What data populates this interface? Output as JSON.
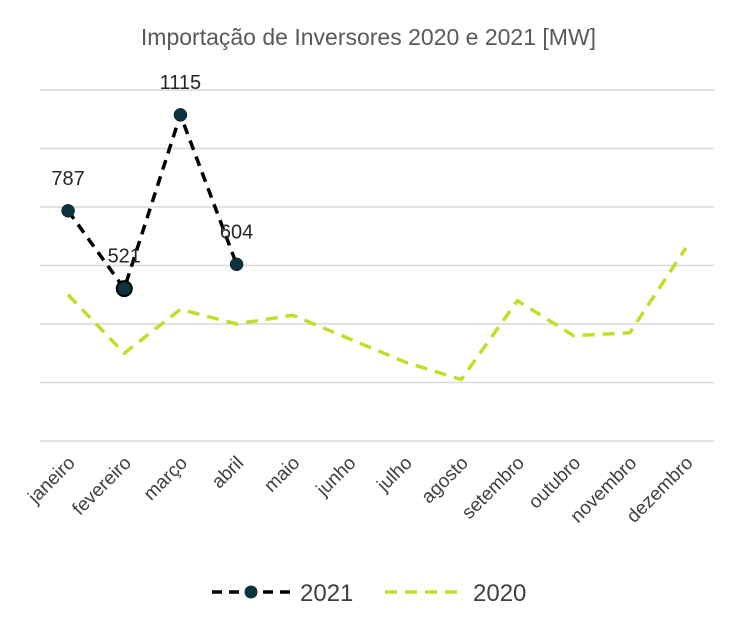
{
  "chart_data": {
    "type": "line",
    "title": "Importação de Inversores 2020 e 2021 [MW]",
    "categories": [
      "janeiro",
      "fevereiro",
      "março",
      "abril",
      "maio",
      "junho",
      "julho",
      "agosto",
      "setembro",
      "outubro",
      "novembro",
      "dezembro"
    ],
    "series": [
      {
        "name": "2021",
        "values": [
          787,
          521,
          1115,
          604,
          null,
          null,
          null,
          null,
          null,
          null,
          null,
          null
        ],
        "data_labels": [
          "787",
          "521",
          "1115",
          "604"
        ],
        "color": "#000000",
        "marker_color": "#0d3340",
        "style": "dashed-with-markers"
      },
      {
        "name": "2020",
        "values": [
          500,
          300,
          450,
          400,
          430,
          350,
          270,
          210,
          480,
          360,
          370,
          660
        ],
        "color": "#c5dc28",
        "style": "dashed"
      }
    ],
    "ylim": [
      0,
      1200
    ],
    "grid": true,
    "legend_position": "bottom"
  }
}
